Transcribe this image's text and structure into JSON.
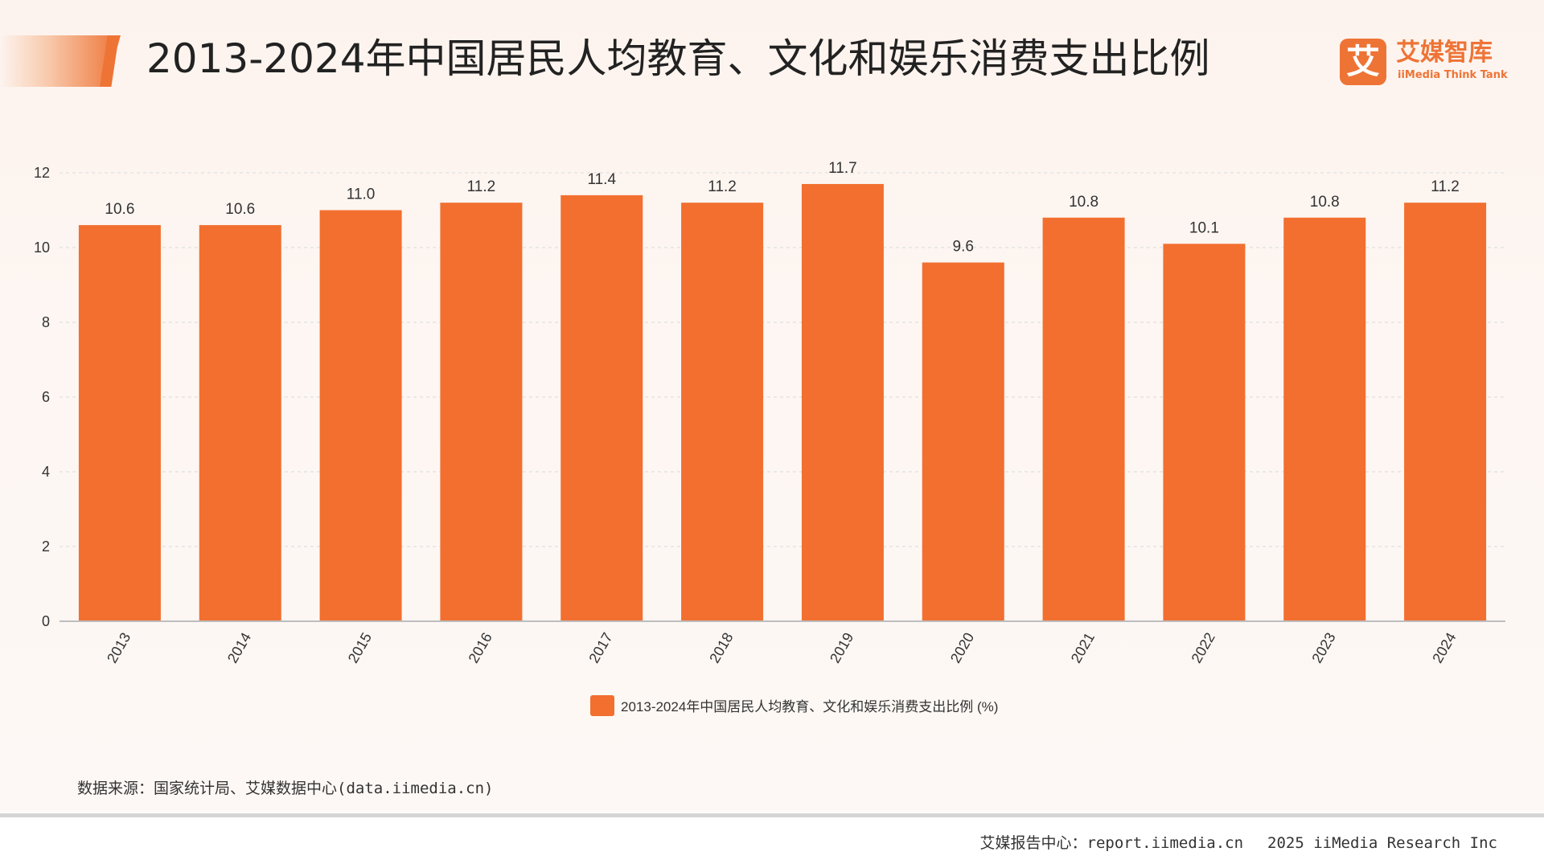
{
  "header": {
    "title": "2013-2024年中国居民人均教育、文化和娱乐消费支出比例"
  },
  "logo": {
    "mark": "艾",
    "name_cn": "艾媒智库",
    "name_en": "iiMedia Think Tank"
  },
  "chart_data": {
    "type": "bar",
    "categories": [
      "2013",
      "2014",
      "2015",
      "2016",
      "2017",
      "2018",
      "2019",
      "2020",
      "2021",
      "2022",
      "2023",
      "2024"
    ],
    "series": [
      {
        "name": "2013-2024年中国居民人均教育、文化和娱乐消费支出比例 (%)",
        "values": [
          10.6,
          10.6,
          11.0,
          11.2,
          11.4,
          11.2,
          11.7,
          9.6,
          10.8,
          10.1,
          10.8,
          11.2
        ],
        "value_labels": [
          "10.6",
          "10.6",
          "11.0",
          "11.2",
          "11.4",
          "11.2",
          "11.7",
          "9.6",
          "10.8",
          "10.1",
          "10.8",
          "11.2"
        ]
      }
    ],
    "yticks": [
      0,
      2,
      4,
      6,
      8,
      10,
      12
    ],
    "ylim": [
      0,
      12
    ],
    "grid": true,
    "legend_position": "bottom-center",
    "bar_color": "#f26f2f"
  },
  "footer": {
    "source": "数据来源：国家统计局、艾媒数据中心(data.iimedia.cn)",
    "report_center": "艾媒报告中心：report.iimedia.cn",
    "copyright": "2025 iiMedia Research Inc"
  }
}
